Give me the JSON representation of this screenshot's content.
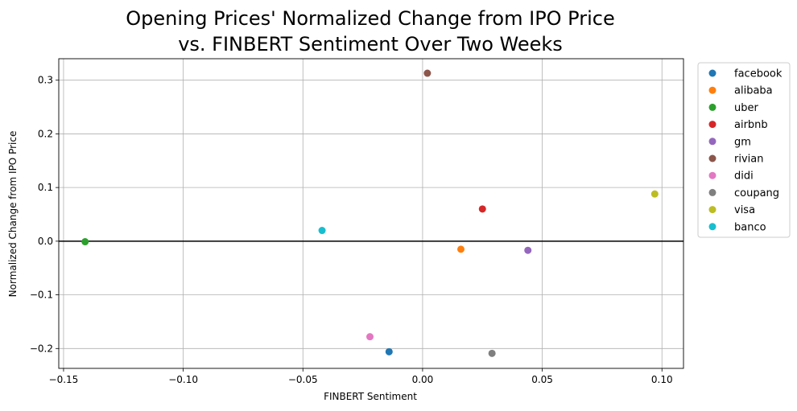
{
  "chart_data": {
    "type": "scatter",
    "title_lines": [
      "Opening Prices' Normalized Change from IPO Price",
      "vs. FINBERT Sentiment Over Two Weeks"
    ],
    "xlabel": "FINBERT Sentiment",
    "ylabel": "Normalized Change from IPO Price",
    "xlim": [
      -0.152,
      0.109
    ],
    "ylim": [
      -0.237,
      0.34
    ],
    "xticks": [
      -0.15,
      -0.1,
      -0.05,
      0.0,
      0.05,
      0.1
    ],
    "xtick_labels": [
      "−0.15",
      "−0.10",
      "−0.05",
      "0.00",
      "0.05",
      "0.10"
    ],
    "yticks": [
      -0.2,
      -0.1,
      0.0,
      0.1,
      0.2,
      0.3
    ],
    "ytick_labels": [
      "−0.2",
      "−0.1",
      "0.0",
      "0.1",
      "0.2",
      "0.3"
    ],
    "grid": true,
    "reference_line_y": 0,
    "legend_position": "outside-right",
    "series": [
      {
        "name": "facebook",
        "color": "#1f77b4",
        "x": -0.014,
        "y": -0.206
      },
      {
        "name": "alibaba",
        "color": "#ff7f0e",
        "x": 0.016,
        "y": -0.015
      },
      {
        "name": "uber",
        "color": "#2ca02c",
        "x": -0.141,
        "y": -0.001
      },
      {
        "name": "airbnb",
        "color": "#d62728",
        "x": 0.025,
        "y": 0.06
      },
      {
        "name": "gm",
        "color": "#9467bd",
        "x": 0.044,
        "y": -0.017
      },
      {
        "name": "rivian",
        "color": "#8c564b",
        "x": 0.002,
        "y": 0.313
      },
      {
        "name": "didi",
        "color": "#e377c2",
        "x": -0.022,
        "y": -0.178
      },
      {
        "name": "coupang",
        "color": "#7f7f7f",
        "x": 0.029,
        "y": -0.209
      },
      {
        "name": "visa",
        "color": "#bcbd22",
        "x": 0.097,
        "y": 0.088
      },
      {
        "name": "banco",
        "color": "#17becf",
        "x": -0.042,
        "y": 0.02
      }
    ]
  }
}
